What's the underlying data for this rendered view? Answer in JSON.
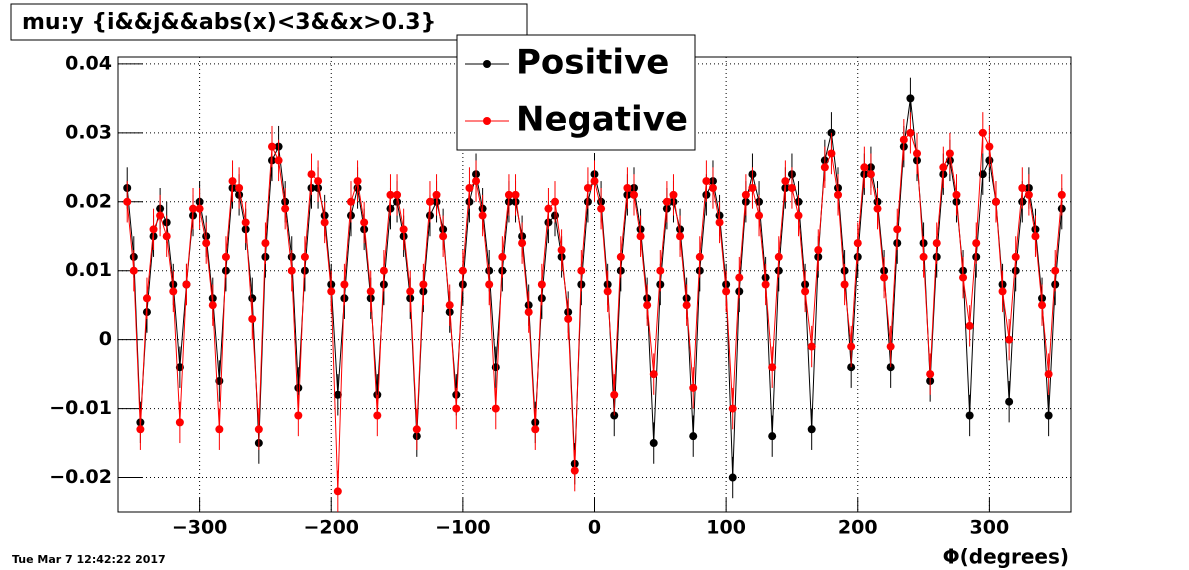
{
  "chart_data": {
    "type": "scatter",
    "title": "mu:y {i&&j&&abs(x)<3&&x>0.3}",
    "x_label": "Φ(degrees)",
    "timestamp": "Tue Mar  7 12:42:22 2017",
    "legend": "upper center",
    "grid": true,
    "xlim": [
      -362,
      362
    ],
    "ylim": [
      -0.025,
      0.041
    ],
    "xticks": [
      {
        "value": -300,
        "label": "−300"
      },
      {
        "value": -200,
        "label": "−200"
      },
      {
        "value": -100,
        "label": "−100"
      },
      0,
      100,
      200,
      300
    ],
    "yticks": [
      {
        "value": -0.02,
        "label": "−0.02"
      },
      {
        "value": -0.01,
        "label": "−0.01"
      },
      0,
      0.01,
      0.02,
      0.03,
      0.04
    ],
    "x": [
      -355,
      -350,
      -345,
      -340,
      -335,
      -330,
      -325,
      -320,
      -315,
      -310,
      -305,
      -300,
      -295,
      -290,
      -285,
      -280,
      -275,
      -270,
      -265,
      -260,
      -255,
      -250,
      -245,
      -240,
      -235,
      -230,
      -225,
      -220,
      -215,
      -210,
      -205,
      -200,
      -195,
      -190,
      -185,
      -180,
      -175,
      -170,
      -165,
      -160,
      -155,
      -150,
      -145,
      -140,
      -135,
      -130,
      -125,
      -120,
      -115,
      -110,
      -105,
      -100,
      -95,
      -90,
      -85,
      -80,
      -75,
      -70,
      -65,
      -60,
      -55,
      -50,
      -45,
      -40,
      -35,
      -30,
      -25,
      -20,
      -15,
      -10,
      -5,
      0,
      5,
      10,
      15,
      20,
      25,
      30,
      35,
      40,
      45,
      50,
      55,
      60,
      65,
      70,
      75,
      80,
      85,
      90,
      95,
      100,
      105,
      110,
      115,
      120,
      125,
      130,
      135,
      140,
      145,
      150,
      155,
      160,
      165,
      170,
      175,
      180,
      185,
      190,
      195,
      200,
      205,
      210,
      215,
      220,
      225,
      230,
      235,
      240,
      245,
      250,
      255,
      260,
      265,
      270,
      275,
      280,
      285,
      290,
      295,
      300,
      305,
      310,
      315,
      320,
      325,
      330,
      335,
      340,
      345,
      350,
      355
    ],
    "series": [
      {
        "name": "Positive",
        "color": "#000000",
        "error": 0.003,
        "values": [
          0.022,
          0.012,
          -0.012,
          0.004,
          0.015,
          0.019,
          0.017,
          0.008,
          -0.004,
          0.008,
          0.018,
          0.02,
          0.015,
          0.006,
          -0.006,
          0.01,
          0.022,
          0.021,
          0.016,
          0.006,
          -0.015,
          0.012,
          0.026,
          0.028,
          0.02,
          0.012,
          -0.007,
          0.01,
          0.022,
          0.022,
          0.018,
          0.008,
          -0.008,
          0.006,
          0.018,
          0.022,
          0.016,
          0.006,
          -0.008,
          0.008,
          0.019,
          0.02,
          0.015,
          0.006,
          -0.014,
          0.007,
          0.018,
          0.02,
          0.016,
          0.004,
          -0.008,
          0.008,
          0.02,
          0.024,
          0.019,
          0.01,
          -0.004,
          0.01,
          0.02,
          0.02,
          0.015,
          0.005,
          -0.012,
          0.006,
          0.017,
          0.018,
          0.012,
          0.004,
          -0.018,
          0.008,
          0.02,
          0.024,
          0.02,
          0.008,
          -0.011,
          0.01,
          0.021,
          0.022,
          0.016,
          0.006,
          -0.015,
          0.008,
          0.019,
          0.02,
          0.016,
          0.006,
          -0.014,
          0.01,
          0.021,
          0.023,
          0.018,
          0.008,
          -0.02,
          0.007,
          0.02,
          0.024,
          0.02,
          0.009,
          -0.014,
          0.01,
          0.022,
          0.024,
          0.02,
          0.008,
          -0.013,
          0.012,
          0.026,
          0.03,
          0.022,
          0.01,
          -0.004,
          0.012,
          0.024,
          0.025,
          0.02,
          0.01,
          -0.004,
          0.014,
          0.028,
          0.035,
          0.026,
          0.014,
          -0.006,
          0.012,
          0.024,
          0.026,
          0.02,
          0.01,
          -0.011,
          0.012,
          0.024,
          0.026,
          0.02,
          0.008,
          -0.009,
          0.01,
          0.02,
          0.022,
          0.016,
          0.006,
          -0.011,
          0.008,
          0.019
        ]
      },
      {
        "name": "Negative",
        "color": "#ff0000",
        "error": 0.003,
        "values": [
          0.02,
          0.01,
          -0.013,
          0.006,
          0.016,
          0.018,
          0.015,
          0.007,
          -0.012,
          0.008,
          0.019,
          0.019,
          0.014,
          0.005,
          -0.013,
          0.012,
          0.023,
          0.022,
          0.017,
          0.003,
          -0.013,
          0.014,
          0.028,
          0.026,
          0.019,
          0.01,
          -0.011,
          0.012,
          0.024,
          0.023,
          0.017,
          0.007,
          -0.022,
          0.008,
          0.02,
          0.023,
          0.017,
          0.007,
          -0.011,
          0.01,
          0.021,
          0.021,
          0.016,
          0.007,
          -0.013,
          0.008,
          0.02,
          0.021,
          0.015,
          0.005,
          -0.01,
          0.01,
          0.022,
          0.023,
          0.018,
          0.008,
          -0.01,
          0.012,
          0.021,
          0.021,
          0.014,
          0.004,
          -0.013,
          0.008,
          0.019,
          0.02,
          0.013,
          0.003,
          -0.019,
          0.01,
          0.022,
          0.023,
          0.019,
          0.007,
          -0.008,
          0.012,
          0.022,
          0.021,
          0.015,
          0.005,
          -0.005,
          0.01,
          0.02,
          0.021,
          0.015,
          0.005,
          -0.007,
          0.012,
          0.023,
          0.022,
          0.017,
          0.007,
          -0.01,
          0.009,
          0.021,
          0.022,
          0.018,
          0.008,
          -0.004,
          0.012,
          0.023,
          0.022,
          0.018,
          0.007,
          -0.001,
          0.013,
          0.025,
          0.027,
          0.021,
          0.008,
          -0.001,
          0.014,
          0.025,
          0.024,
          0.019,
          0.009,
          -0.001,
          0.016,
          0.029,
          0.03,
          0.027,
          0.012,
          -0.005,
          0.014,
          0.025,
          0.027,
          0.021,
          0.009,
          0.002,
          0.014,
          0.03,
          0.028,
          0.02,
          0.007,
          0.0,
          0.012,
          0.022,
          0.021,
          0.015,
          0.005,
          -0.005,
          0.01,
          0.021
        ]
      }
    ]
  }
}
